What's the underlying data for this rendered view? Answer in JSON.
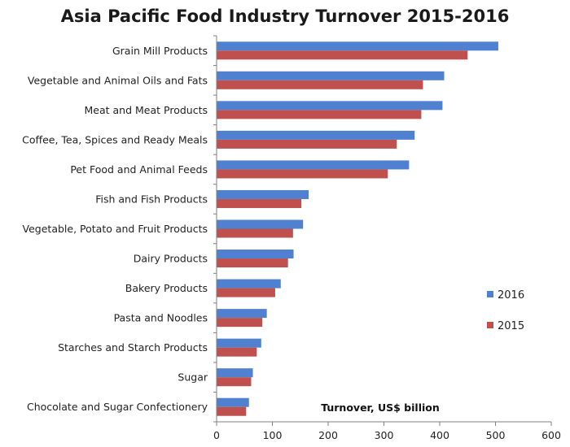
{
  "chart_data": {
    "type": "bar",
    "orientation": "horizontal",
    "title": "Asia Pacific Food Industry Turnover 2015-2016",
    "xlabel": "Turnover, US$ billion",
    "ylabel": "",
    "xlim": [
      0,
      600
    ],
    "xticks": [
      0,
      100,
      200,
      300,
      400,
      500,
      600
    ],
    "grid": false,
    "legend_position": "right",
    "categories": [
      "Grain Mill Products",
      "Vegetable and Animal Oils and Fats",
      "Meat and Meat Products",
      "Coffee, Tea, Spices and Ready Meals",
      "Pet Food and Animal Feeds",
      "Fish and Fish Products",
      "Vegetable, Potato and Fruit Products",
      "Dairy Products",
      "Bakery Products",
      "Pasta and Noodles",
      "Starches and Starch Products",
      "Sugar",
      "Chocolate and Sugar Confectionery"
    ],
    "series": [
      {
        "name": "2016",
        "color": "#4f81d0",
        "values": [
          505,
          408,
          405,
          355,
          345,
          165,
          155,
          138,
          115,
          90,
          80,
          65,
          58
        ]
      },
      {
        "name": "2015",
        "color": "#c0504d",
        "values": [
          450,
          370,
          367,
          323,
          307,
          152,
          137,
          128,
          105,
          82,
          72,
          62,
          53
        ]
      }
    ]
  }
}
